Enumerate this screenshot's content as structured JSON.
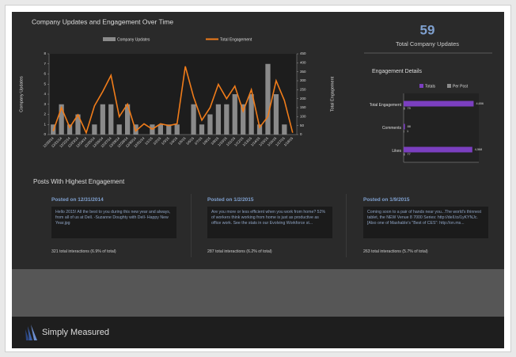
{
  "chart_data": [
    {
      "type": "combo",
      "title": "Company Updates and Engagement Over Time",
      "categories": [
        "12/20/14",
        "12/21/14",
        "12/22/14",
        "12/23/14",
        "12/24/14",
        "12/25/14",
        "12/26/14",
        "12/27/14",
        "12/28/14",
        "12/29/14",
        "12/30/14",
        "12/31/14",
        "1/1/15",
        "1/2/15",
        "1/3/15",
        "1/4/15",
        "1/5/15",
        "1/6/15",
        "1/7/15",
        "1/8/15",
        "1/9/15",
        "1/10/15",
        "1/11/15",
        "1/12/15",
        "1/13/15",
        "1/14/15",
        "1/15/15",
        "1/16/15",
        "1/17/15",
        "1/18/15"
      ],
      "series": [
        {
          "name": "Company Updates",
          "type": "bar",
          "color": "#8a8a8a",
          "axis": "y",
          "values": [
            1,
            3,
            1,
            2,
            0,
            1,
            3,
            3,
            1,
            3,
            1,
            0,
            1,
            1,
            1,
            1,
            0,
            3,
            1,
            2,
            3,
            3,
            4,
            3,
            4,
            1,
            7,
            4,
            1,
            0
          ]
        },
        {
          "name": "Total Engagement",
          "type": "line",
          "color": "#f07c1a",
          "axis": "y2",
          "values": [
            20,
            150,
            40,
            110,
            10,
            160,
            240,
            330,
            100,
            170,
            20,
            60,
            30,
            60,
            50,
            60,
            380,
            210,
            80,
            150,
            280,
            200,
            270,
            130,
            250,
            40,
            100,
            300,
            190,
            10
          ]
        }
      ],
      "ylabel": "Company Updates",
      "y2label": "Total Engagement",
      "ylim": [
        0,
        8
      ],
      "yticks": [
        0,
        1,
        2,
        3,
        4,
        5,
        6,
        7,
        8
      ],
      "y2lim": [
        0,
        450
      ],
      "y2ticks": [
        0,
        50,
        100,
        150,
        200,
        250,
        300,
        350,
        400,
        450
      ]
    },
    {
      "type": "hbar",
      "title": "Engagement Details",
      "categories": [
        "Total Engagement",
        "Comments",
        "Likes"
      ],
      "series": [
        {
          "name": "Totals",
          "color": "#7b3fc0",
          "values": [
            4656,
            88,
            4568
          ],
          "value_labels": [
            "4,656",
            "88",
            "4,568"
          ]
        },
        {
          "name": "Per Post",
          "color": "#8a8a8a",
          "values": [
            79,
            1,
            77
          ]
        }
      ],
      "xlim": [
        0,
        5000
      ]
    }
  ],
  "summary": {
    "value": 59,
    "label": "Total Company Updates"
  },
  "posts": {
    "title": "Posts With Highest Engagement",
    "items": [
      {
        "date": "Posted on 12/31/2014",
        "text": "Hello 2015! All the best to you during this new year and always, from all of us at Dell. -Suzanne Doughty with Dell- Happy New Year.jpg",
        "stats": "321 total interactions (6.9% of total)"
      },
      {
        "date": "Posted on 1/2/2015",
        "text": "Are you more or less efficient when you work from home? 52% of workers think working from home is just as productive as office work. See the stats in our Evolving Workforce st...",
        "stats": "287 total interactions (6.2% of total)"
      },
      {
        "date": "Posted on 1/9/2015",
        "text": "Coming soon to a pair of hands near you...The world's thinnest tablet, the NEW Venue 8 7000 Series: http://dell.to/1yKYNJc. [Also one of Mashable's \"Best of CES\": http://on.ms...",
        "stats": "263 total interactions (5.7% of total)"
      }
    ]
  },
  "footer": {
    "brand": "Simply Measured"
  }
}
